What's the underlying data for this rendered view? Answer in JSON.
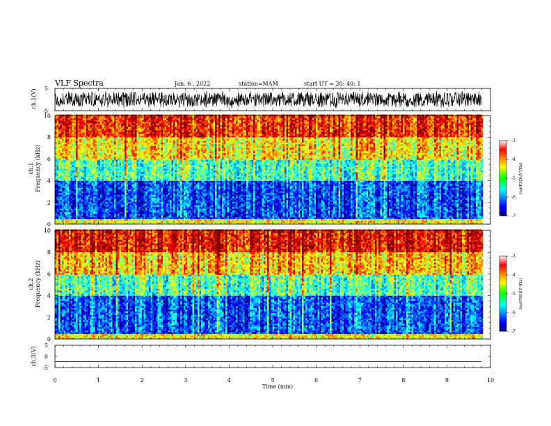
{
  "header": {
    "title": "VLF Spectra",
    "date": "Jan. 6 , 2022",
    "station": "station=MAM",
    "start": "start UT = 20: 40: 1"
  },
  "chart_data": [
    {
      "type": "line",
      "panel": "ch.1 waveform",
      "ylabel": "ch.1(V)",
      "ylim": [
        -5,
        5
      ],
      "yticks": [
        "5",
        "-5"
      ],
      "xlim": [
        0,
        10
      ],
      "note": "dense oscillating waveform filling roughly -4 to +4 V over the full interval"
    },
    {
      "type": "heatmap",
      "panel": "ch.1 spectrogram",
      "ylabel": "ch.1\nFrequency (kHz)",
      "ylabel_line1": "ch.1",
      "ylabel_line2": "Frequency (kHz)",
      "ylim": [
        0,
        10
      ],
      "yticks": [
        "0",
        "2",
        "4",
        "6",
        "8",
        "10"
      ],
      "xlim": [
        0,
        9.8
      ],
      "color_scale": {
        "label": "log(PSD)(V²/Hz)",
        "min": -7,
        "max": -3,
        "ticks": [
          "-3",
          "-4",
          "-5",
          "-6",
          "-7"
        ]
      },
      "description_bands": [
        {
          "freq_khz": [
            0,
            0.5
          ],
          "level": -4.5
        },
        {
          "freq_khz": [
            0.5,
            4
          ],
          "level": -6.2
        },
        {
          "freq_khz": [
            4,
            6
          ],
          "level": -5.2
        },
        {
          "freq_khz": [
            6,
            8
          ],
          "level": -4.4
        },
        {
          "freq_khz": [
            8,
            10
          ],
          "level": -3.6
        }
      ]
    },
    {
      "type": "heatmap",
      "panel": "ch.2 spectrogram",
      "ylabel": "ch.2\nFrequency (kHz)",
      "ylabel_line1": "ch.2",
      "ylabel_line2": "Frequency (kHz)",
      "ylim": [
        0,
        10
      ],
      "yticks": [
        "0",
        "2",
        "4",
        "6",
        "8",
        "10"
      ],
      "xlim": [
        0,
        9.8
      ],
      "color_scale": {
        "label": "log(PSD)(V²/Hz)",
        "min": -7,
        "max": -3,
        "ticks": [
          "-3",
          "-4",
          "-5",
          "-6",
          "-7"
        ]
      },
      "description_bands": [
        {
          "freq_khz": [
            0,
            0.5
          ],
          "level": -4.5
        },
        {
          "freq_khz": [
            0.5,
            4
          ],
          "level": -6.2
        },
        {
          "freq_khz": [
            4,
            6
          ],
          "level": -5.2
        },
        {
          "freq_khz": [
            6,
            8
          ],
          "level": -4.3
        },
        {
          "freq_khz": [
            8,
            10
          ],
          "level": -3.5
        }
      ]
    },
    {
      "type": "line",
      "panel": "ch.3 waveform",
      "ylabel": "ch.3(V)",
      "ylim": [
        -5,
        5
      ],
      "yticks": [
        "5",
        "0",
        "-5"
      ],
      "xlim": [
        0,
        10
      ],
      "x": [
        0,
        9.8
      ],
      "y": [
        -2.3,
        -2.3
      ]
    }
  ],
  "xaxis": {
    "label": "Time (min)",
    "range": [
      0,
      10
    ],
    "ticks": [
      "0",
      "1",
      "2",
      "3",
      "4",
      "5",
      "6",
      "7",
      "8",
      "9",
      "10"
    ]
  }
}
